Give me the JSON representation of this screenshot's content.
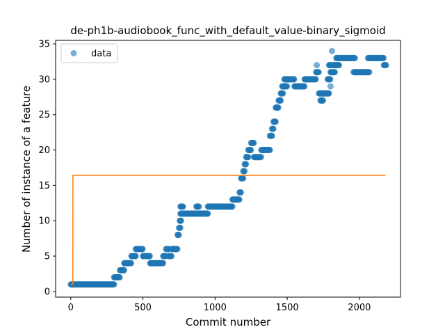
{
  "chart_data": {
    "type": "scatter",
    "title": "de-ph1b-audiobook_func_with_default_value-binary_sigmoid",
    "xlabel": "Commit number",
    "ylabel": "Number of instance of a feature",
    "xlim": [
      -105,
      2285
    ],
    "ylim": [
      -0.8,
      35.5
    ],
    "xticks": [
      0,
      500,
      1000,
      1500,
      2000
    ],
    "yticks": [
      0,
      5,
      10,
      15,
      20,
      25,
      30,
      35
    ],
    "grid": false,
    "legend": {
      "placement": "top-left",
      "entries": [
        "data"
      ]
    },
    "colors": {
      "data": "#1f77b4",
      "fit": "#ff7f0e"
    },
    "series": [
      {
        "name": "data",
        "kind": "scatter",
        "segments": [
          [
            0,
            300,
            1
          ],
          [
            300,
            340,
            2
          ],
          [
            340,
            370,
            3
          ],
          [
            370,
            420,
            4
          ],
          [
            420,
            450,
            5
          ],
          [
            450,
            500,
            6
          ],
          [
            500,
            530,
            5
          ],
          [
            530,
            550,
            5
          ],
          [
            550,
            580,
            4
          ],
          [
            580,
            640,
            4
          ],
          [
            640,
            660,
            5
          ],
          [
            660,
            680,
            6
          ],
          [
            680,
            700,
            5
          ],
          [
            700,
            740,
            6
          ],
          [
            740,
            750,
            8
          ],
          [
            750,
            760,
            9
          ],
          [
            755,
            765,
            10
          ],
          [
            760,
            890,
            11
          ],
          [
            760,
            780,
            12
          ],
          [
            870,
            890,
            12
          ],
          [
            890,
            950,
            11
          ],
          [
            950,
            1000,
            12
          ],
          [
            1000,
            1120,
            12
          ],
          [
            1120,
            1170,
            13
          ],
          [
            1170,
            1180,
            14
          ],
          [
            1180,
            1195,
            16
          ],
          [
            1195,
            1205,
            17
          ],
          [
            1205,
            1215,
            18
          ],
          [
            1215,
            1230,
            19
          ],
          [
            1230,
            1250,
            20
          ],
          [
            1250,
            1270,
            21
          ],
          [
            1270,
            1320,
            19
          ],
          [
            1320,
            1380,
            20
          ],
          [
            1380,
            1395,
            22
          ],
          [
            1395,
            1405,
            23
          ],
          [
            1405,
            1420,
            24
          ],
          [
            1420,
            1440,
            26
          ],
          [
            1440,
            1455,
            27
          ],
          [
            1455,
            1470,
            28
          ],
          [
            1465,
            1480,
            29
          ],
          [
            1480,
            1500,
            29
          ],
          [
            1480,
            1500,
            30
          ],
          [
            1500,
            1550,
            30
          ],
          [
            1550,
            1620,
            29
          ],
          [
            1620,
            1700,
            30
          ],
          [
            1700,
            1720,
            31
          ],
          [
            1720,
            1790,
            28
          ],
          [
            1730,
            1750,
            27
          ],
          [
            1780,
            1800,
            30
          ],
          [
            1790,
            1810,
            32
          ],
          [
            1800,
            1830,
            31
          ],
          [
            1820,
            1860,
            32
          ],
          [
            1840,
            1970,
            33
          ],
          [
            1960,
            2070,
            31
          ],
          [
            2060,
            2170,
            33
          ],
          [
            2170,
            2185,
            32
          ]
        ],
        "outliers": [
          [
            1705,
            32
          ],
          [
            1810,
            34
          ],
          [
            1800,
            29
          ]
        ]
      },
      {
        "name": "fit",
        "kind": "line",
        "x": [
          0,
          3,
          14,
          15,
          2180
        ],
        "y": [
          1.0,
          1.0,
          1.0,
          16.4,
          16.4
        ]
      }
    ]
  }
}
